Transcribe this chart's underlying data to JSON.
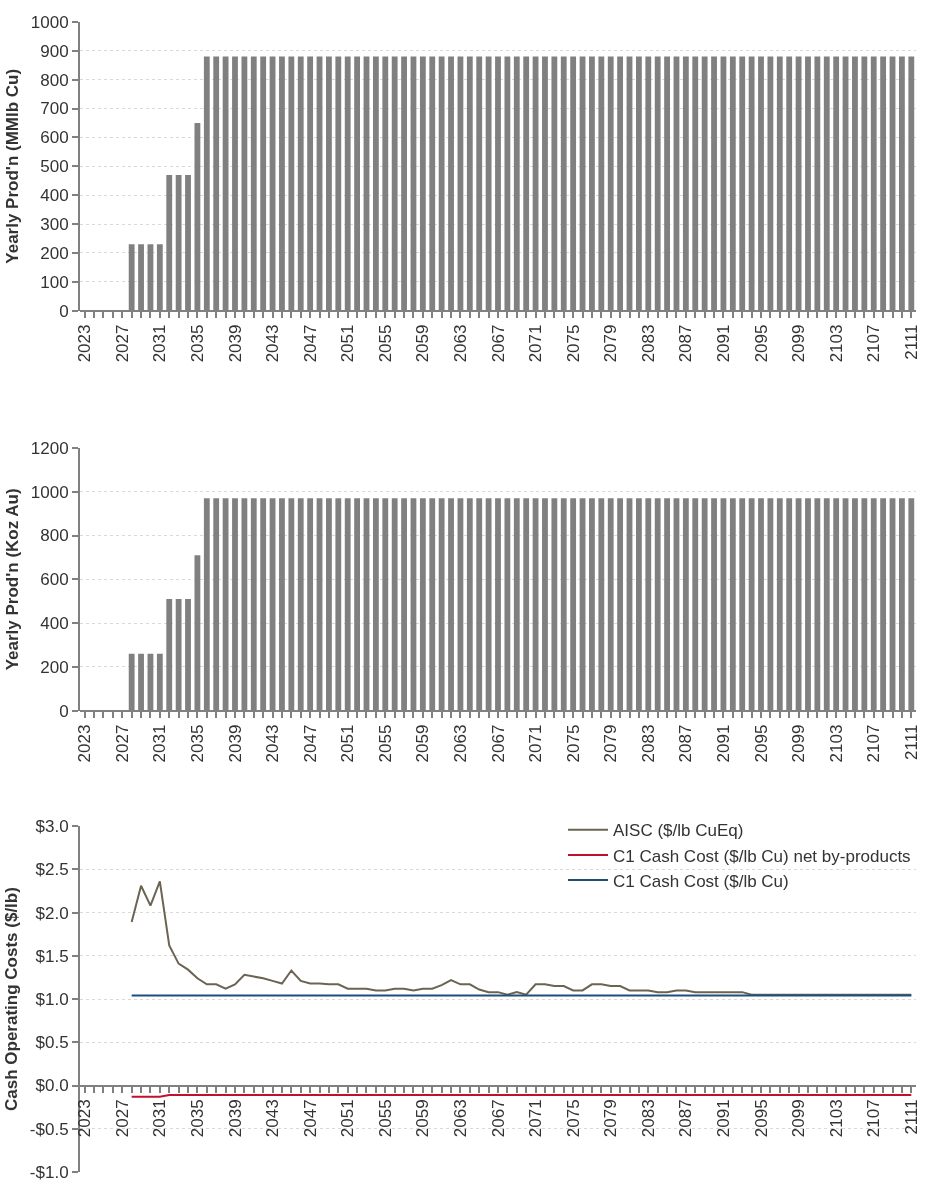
{
  "chart_data": [
    {
      "type": "bar",
      "ylabel": "Yearly Prod'n (MMlb Cu)",
      "grid": "y",
      "legend": false,
      "categories": [
        "2023",
        null,
        null,
        null,
        "2027",
        null,
        null,
        null,
        "2031",
        null,
        null,
        null,
        "2035",
        null,
        null,
        null,
        "2039",
        null,
        null,
        null,
        "2043",
        null,
        null,
        null,
        "2047",
        null,
        null,
        null,
        "2051",
        null,
        null,
        null,
        "2055",
        null,
        null,
        null,
        "2059",
        null,
        null,
        null,
        "2063",
        null,
        null,
        null,
        "2067",
        null,
        null,
        null,
        "2071",
        null,
        null,
        null,
        "2075",
        null,
        null,
        null,
        "2079",
        null,
        null,
        null,
        "2083",
        null,
        null,
        null,
        "2087",
        null,
        null,
        null,
        "2091",
        null,
        null,
        null,
        "2095",
        null,
        null,
        null,
        "2099",
        null,
        null,
        null,
        "2103",
        null,
        null,
        null,
        "2107",
        null,
        null,
        null,
        "2111"
      ],
      "series": [
        {
          "color": "#808080",
          "values": [
            0,
            0,
            0,
            0,
            0,
            230,
            230,
            230,
            230,
            470,
            470,
            470,
            650,
            880,
            880,
            880,
            880,
            880,
            880,
            880,
            880,
            880,
            880,
            880,
            880,
            880,
            880,
            880,
            880,
            880,
            880,
            880,
            880,
            880,
            880,
            880,
            880,
            880,
            880,
            880,
            880,
            880,
            880,
            880,
            880,
            880,
            880,
            880,
            880,
            880,
            880,
            880,
            880,
            880,
            880,
            880,
            880,
            880,
            880,
            880,
            880,
            880,
            880,
            880,
            880,
            880,
            880,
            880,
            880,
            880,
            880,
            880,
            880,
            880,
            880,
            880,
            880,
            880,
            880,
            880,
            880,
            880,
            880,
            880,
            880,
            880,
            880,
            880,
            880
          ]
        }
      ],
      "ylim": [
        0,
        1000
      ],
      "yticks": [
        0,
        100,
        200,
        300,
        400,
        500,
        600,
        700,
        800,
        900,
        1000
      ]
    },
    {
      "type": "bar",
      "ylabel": "Yearly Prod'n (Koz Au)",
      "grid": "y",
      "legend": false,
      "categories": [
        "2023",
        null,
        null,
        null,
        "2027",
        null,
        null,
        null,
        "2031",
        null,
        null,
        null,
        "2035",
        null,
        null,
        null,
        "2039",
        null,
        null,
        null,
        "2043",
        null,
        null,
        null,
        "2047",
        null,
        null,
        null,
        "2051",
        null,
        null,
        null,
        "2055",
        null,
        null,
        null,
        "2059",
        null,
        null,
        null,
        "2063",
        null,
        null,
        null,
        "2067",
        null,
        null,
        null,
        "2071",
        null,
        null,
        null,
        "2075",
        null,
        null,
        null,
        "2079",
        null,
        null,
        null,
        "2083",
        null,
        null,
        null,
        "2087",
        null,
        null,
        null,
        "2091",
        null,
        null,
        null,
        "2095",
        null,
        null,
        null,
        "2099",
        null,
        null,
        null,
        "2103",
        null,
        null,
        null,
        "2107",
        null,
        null,
        null,
        "2111"
      ],
      "series": [
        {
          "color": "#808080",
          "values": [
            0,
            0,
            0,
            0,
            0,
            260,
            260,
            260,
            260,
            510,
            510,
            510,
            710,
            970,
            970,
            970,
            970,
            970,
            970,
            970,
            970,
            970,
            970,
            970,
            970,
            970,
            970,
            970,
            970,
            970,
            970,
            970,
            970,
            970,
            970,
            970,
            970,
            970,
            970,
            970,
            970,
            970,
            970,
            970,
            970,
            970,
            970,
            970,
            970,
            970,
            970,
            970,
            970,
            970,
            970,
            970,
            970,
            970,
            970,
            970,
            970,
            970,
            970,
            970,
            970,
            970,
            970,
            970,
            970,
            970,
            970,
            970,
            970,
            970,
            970,
            970,
            970,
            970,
            970,
            970,
            970,
            970,
            970,
            970,
            970,
            970,
            970,
            970,
            970
          ]
        }
      ],
      "ylim": [
        0,
        1200
      ],
      "yticks": [
        0,
        200,
        400,
        600,
        800,
        1000,
        1200
      ]
    },
    {
      "type": "line",
      "ylabel": "Cash Operating Costs ($/lb)",
      "grid": "y",
      "legend": "top right",
      "line_style": "solid",
      "marker": "none",
      "categories": [
        "2023",
        null,
        null,
        null,
        "2027",
        null,
        null,
        null,
        "2031",
        null,
        null,
        null,
        "2035",
        null,
        null,
        null,
        "2039",
        null,
        null,
        null,
        "2043",
        null,
        null,
        null,
        "2047",
        null,
        null,
        null,
        "2051",
        null,
        null,
        null,
        "2055",
        null,
        null,
        null,
        "2059",
        null,
        null,
        null,
        "2063",
        null,
        null,
        null,
        "2067",
        null,
        null,
        null,
        "2071",
        null,
        null,
        null,
        "2075",
        null,
        null,
        null,
        "2079",
        null,
        null,
        null,
        "2083",
        null,
        null,
        null,
        "2087",
        null,
        null,
        null,
        "2091",
        null,
        null,
        null,
        "2095",
        null,
        null,
        null,
        "2099",
        null,
        null,
        null,
        "2103",
        null,
        null,
        null,
        "2107",
        null,
        null,
        null,
        "2111"
      ],
      "series": [
        {
          "name": "AISC ($/lb CuEq)",
          "color": "#6b6452",
          "values": [
            null,
            null,
            null,
            null,
            null,
            1.89,
            2.31,
            2.08,
            2.36,
            1.62,
            1.41,
            1.34,
            1.24,
            1.17,
            1.17,
            1.12,
            1.17,
            1.28,
            1.26,
            1.24,
            1.21,
            1.18,
            1.33,
            1.21,
            1.18,
            1.18,
            1.17,
            1.17,
            1.12,
            1.12,
            1.12,
            1.1,
            1.1,
            1.12,
            1.12,
            1.1,
            1.12,
            1.12,
            1.16,
            1.22,
            1.17,
            1.17,
            1.11,
            1.08,
            1.08,
            1.05,
            1.08,
            1.05,
            1.17,
            1.17,
            1.15,
            1.15,
            1.1,
            1.1,
            1.17,
            1.17,
            1.15,
            1.15,
            1.1,
            1.1,
            1.1,
            1.08,
            1.08,
            1.1,
            1.1,
            1.08,
            1.08,
            1.08,
            1.08,
            1.08,
            1.08,
            1.05,
            1.05,
            1.05,
            1.05,
            1.05,
            1.05,
            1.05,
            1.05,
            1.05,
            1.05,
            1.05,
            1.05,
            1.05,
            1.05,
            1.05,
            1.05,
            1.05,
            1.05
          ]
        },
        {
          "name": "C1 Cash Cost ($/lb Cu) net by-products",
          "color": "#c0102c",
          "values": [
            null,
            null,
            null,
            null,
            null,
            -0.13,
            -0.13,
            -0.13,
            -0.13,
            -0.11,
            -0.11,
            -0.11,
            -0.11,
            -0.11,
            -0.11,
            -0.11,
            -0.11,
            -0.11,
            -0.11,
            -0.11,
            -0.11,
            -0.11,
            -0.11,
            -0.11,
            -0.11,
            -0.11,
            -0.11,
            -0.11,
            -0.11,
            -0.11,
            -0.11,
            -0.11,
            -0.11,
            -0.11,
            -0.11,
            -0.11,
            -0.11,
            -0.11,
            -0.11,
            -0.11,
            -0.11,
            -0.11,
            -0.11,
            -0.11,
            -0.11,
            -0.11,
            -0.11,
            -0.11,
            -0.11,
            -0.11,
            -0.11,
            -0.11,
            -0.11,
            -0.11,
            -0.11,
            -0.11,
            -0.11,
            -0.11,
            -0.11,
            -0.11,
            -0.11,
            -0.11,
            -0.11,
            -0.11,
            -0.11,
            -0.11,
            -0.11,
            -0.11,
            -0.11,
            -0.11,
            -0.11,
            -0.11,
            -0.11,
            -0.11,
            -0.11,
            -0.11,
            -0.11,
            -0.11,
            -0.11,
            -0.11,
            -0.11,
            -0.11,
            -0.11,
            -0.11,
            -0.11,
            -0.11,
            -0.11,
            -0.11,
            -0.11
          ]
        },
        {
          "name": "C1 Cash Cost ($/lb Cu)",
          "color": "#1f4e79",
          "values": [
            null,
            null,
            null,
            null,
            null,
            1.04,
            1.04,
            1.04,
            1.04,
            1.04,
            1.04,
            1.04,
            1.04,
            1.04,
            1.04,
            1.04,
            1.04,
            1.04,
            1.04,
            1.04,
            1.04,
            1.04,
            1.04,
            1.04,
            1.04,
            1.04,
            1.04,
            1.04,
            1.04,
            1.04,
            1.04,
            1.04,
            1.04,
            1.04,
            1.04,
            1.04,
            1.04,
            1.04,
            1.04,
            1.04,
            1.04,
            1.04,
            1.04,
            1.04,
            1.04,
            1.04,
            1.04,
            1.04,
            1.04,
            1.04,
            1.04,
            1.04,
            1.04,
            1.04,
            1.04,
            1.04,
            1.04,
            1.04,
            1.04,
            1.04,
            1.04,
            1.04,
            1.04,
            1.04,
            1.04,
            1.04,
            1.04,
            1.04,
            1.04,
            1.04,
            1.04,
            1.04,
            1.04,
            1.04,
            1.04,
            1.04,
            1.04,
            1.04,
            1.04,
            1.04,
            1.04,
            1.04,
            1.04,
            1.04,
            1.04,
            1.04,
            1.04,
            1.04,
            1.04
          ]
        }
      ],
      "ylim": [
        -1.0,
        3.0
      ],
      "yticks": [
        {
          "value": -1.0,
          "label": "-$1.0"
        },
        {
          "value": -0.5,
          "label": "-$0.5"
        },
        {
          "value": 0.0,
          "label": "$0.0"
        },
        {
          "value": 0.5,
          "label": "$0.5"
        },
        {
          "value": 1.0,
          "label": "$1.0"
        },
        {
          "value": 1.5,
          "label": "$1.5"
        },
        {
          "value": 2.0,
          "label": "$2.0"
        },
        {
          "value": 2.5,
          "label": "$2.5"
        },
        {
          "value": 3.0,
          "label": "$3.0"
        }
      ]
    }
  ]
}
